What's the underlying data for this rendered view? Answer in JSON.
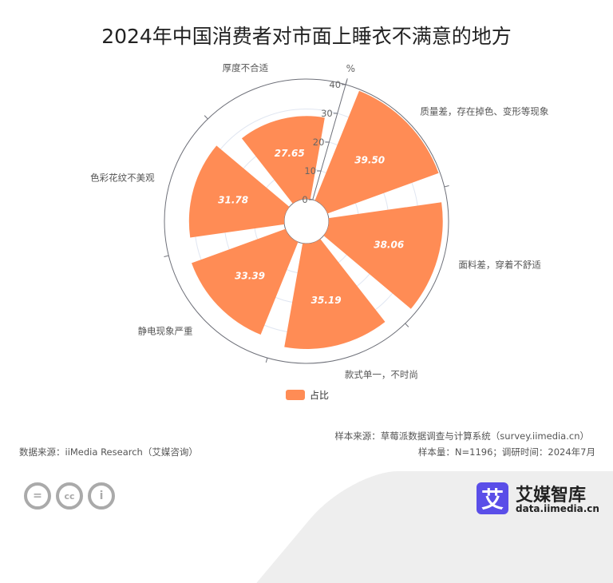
{
  "chart_data": {
    "type": "polar-bar",
    "title": "2024年中国消费者对市面上睡衣不满意的地方",
    "unit": "%",
    "categories": [
      "质量差，存在掉色、变形等现象",
      "面料差，穿着不舒适",
      "款式单一，不时尚",
      "静电现象严重",
      "色彩花纹不美观",
      "厚度不合适"
    ],
    "series": [
      {
        "name": "占比",
        "values": [
          39.5,
          38.06,
          35.19,
          33.39,
          31.78,
          27.65
        ]
      }
    ],
    "radial_ticks": [
      "0",
      "10",
      "20",
      "30",
      "40"
    ],
    "rlim": [
      0,
      40
    ],
    "color": "#ff8c55",
    "legend_position": "bottom"
  },
  "footer": {
    "sample_source": "样本来源：草莓派数据调查与计算系统（survey.iimedia.cn）",
    "data_source": "数据来源：iiMedia Research（艾媒咨询）",
    "sample_info": "样本量：N=1196；调研时间：2024年7月",
    "brand": "艾媒智库",
    "brand_logo": "艾",
    "url": "data.iimedia.cn"
  }
}
